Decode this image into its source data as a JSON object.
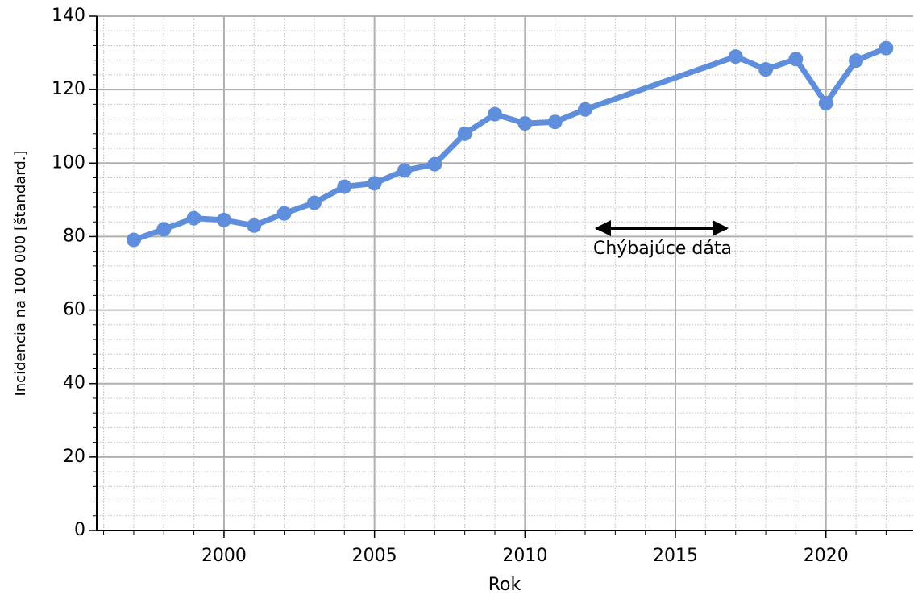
{
  "chart_data": {
    "type": "line",
    "x": [
      1997,
      1998,
      1999,
      2000,
      2001,
      2002,
      2003,
      2004,
      2005,
      2006,
      2007,
      2008,
      2009,
      2010,
      2011,
      2012,
      2017,
      2018,
      2019,
      2020,
      2021,
      2022
    ],
    "series": [
      {
        "color": "#5f8fdc",
        "values": [
          79.1,
          82,
          85,
          84.5,
          83,
          86.3,
          89.2,
          93.6,
          94.5,
          98,
          99.7,
          108,
          113.3,
          110.8,
          111.2,
          114.6,
          129,
          125.5,
          128.3,
          116.3,
          127.9,
          131.3
        ]
      }
    ],
    "xlabel": "Rok",
    "ylabel": "Incidencia na 100 000 [štandard.]",
    "annotation": "Chýbajúce dáta",
    "xlim": [
      1995.77,
      2022.9
    ],
    "xticks": [
      2000,
      2005,
      2010,
      2015,
      2020
    ],
    "ylim": [
      0,
      140
    ],
    "yticks": [
      0,
      20,
      40,
      60,
      80,
      100,
      120,
      140
    ],
    "grid": true
  }
}
